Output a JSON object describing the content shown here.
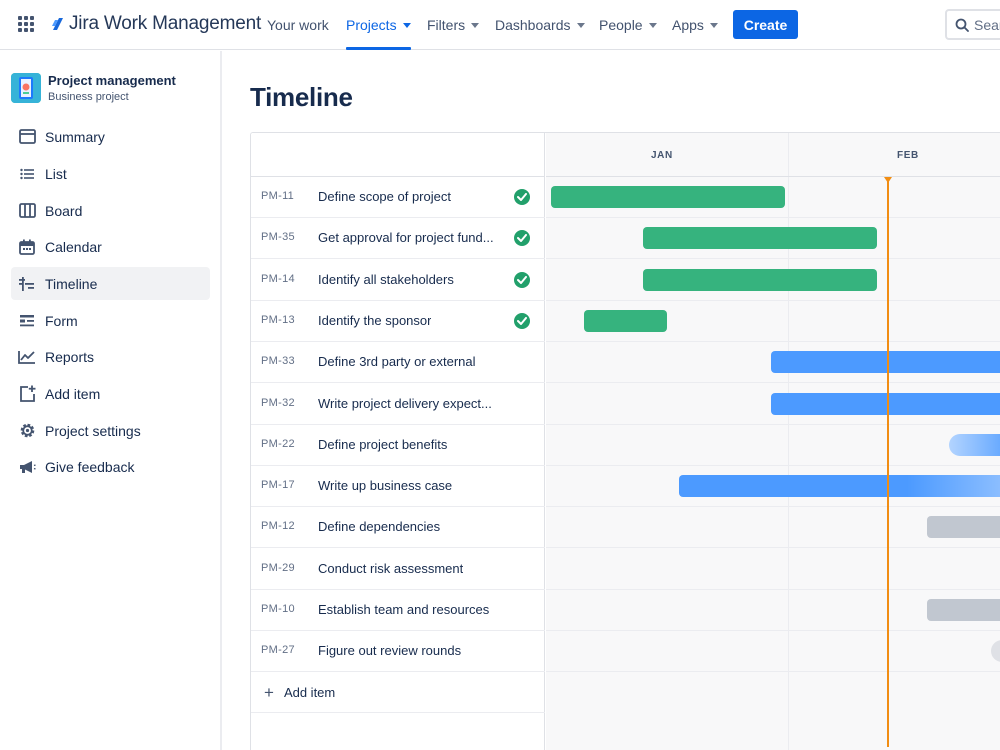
{
  "topnav": {
    "app_name": "Jira Work Management",
    "items": [
      {
        "label": "Your work",
        "dropdown": false,
        "active": false
      },
      {
        "label": "Projects",
        "dropdown": true,
        "active": true
      },
      {
        "label": "Filters",
        "dropdown": true,
        "active": false
      },
      {
        "label": "Dashboards",
        "dropdown": true,
        "active": false
      },
      {
        "label": "People",
        "dropdown": true,
        "active": false
      },
      {
        "label": "Apps",
        "dropdown": true,
        "active": false
      }
    ],
    "create_label": "Create",
    "search_placeholder": "Sear"
  },
  "sidebar": {
    "project_name": "Project management",
    "project_type": "Business project",
    "items": [
      {
        "label": "Summary",
        "icon": "summary-icon"
      },
      {
        "label": "List",
        "icon": "list-icon"
      },
      {
        "label": "Board",
        "icon": "board-icon"
      },
      {
        "label": "Calendar",
        "icon": "calendar-icon"
      },
      {
        "label": "Timeline",
        "icon": "timeline-icon",
        "selected": true
      },
      {
        "label": "Form",
        "icon": "form-icon"
      },
      {
        "label": "Reports",
        "icon": "reports-icon"
      },
      {
        "label": "Add item",
        "icon": "add-item-icon"
      },
      {
        "label": "Project settings",
        "icon": "gear-icon"
      },
      {
        "label": "Give feedback",
        "icon": "megaphone-icon"
      }
    ]
  },
  "main": {
    "title": "Timeline",
    "months": [
      "JAN",
      "FEB"
    ],
    "add_item_label": "Add item",
    "rows": [
      {
        "key": "PM-11",
        "summary": "Define scope of project",
        "done": true,
        "status": "done"
      },
      {
        "key": "PM-35",
        "summary": "Get approval for project fund...",
        "done": true,
        "status": "done"
      },
      {
        "key": "PM-14",
        "summary": "Identify all stakeholders",
        "done": true,
        "status": "done"
      },
      {
        "key": "PM-13",
        "summary": "Identify the sponsor",
        "done": true,
        "status": "done"
      },
      {
        "key": "PM-33",
        "summary": "Define 3rd party or external",
        "done": false,
        "status": "in-progress"
      },
      {
        "key": "PM-32",
        "summary": "Write project delivery expect...",
        "done": false,
        "status": "in-progress"
      },
      {
        "key": "PM-22",
        "summary": "Define project benefits",
        "done": false,
        "status": "in-progress-fade"
      },
      {
        "key": "PM-17",
        "summary": "Write up business case",
        "done": false,
        "status": "in-progress-fade"
      },
      {
        "key": "PM-12",
        "summary": "Define dependencies",
        "done": false,
        "status": "todo"
      },
      {
        "key": "PM-29",
        "summary": "Conduct risk assessment",
        "done": false,
        "status": "none"
      },
      {
        "key": "PM-10",
        "summary": "Establish team and resources",
        "done": false,
        "status": "todo"
      },
      {
        "key": "PM-27",
        "summary": "Figure out review rounds",
        "done": false,
        "status": "todo-light"
      }
    ]
  },
  "colors": {
    "accent": "#0C66E4",
    "done_bar": "#36B37E",
    "progress_bar": "#4C9AFF",
    "todo_bar": "#C1C7D0",
    "today_marker": "#F18D13",
    "check": "#22A06B"
  }
}
